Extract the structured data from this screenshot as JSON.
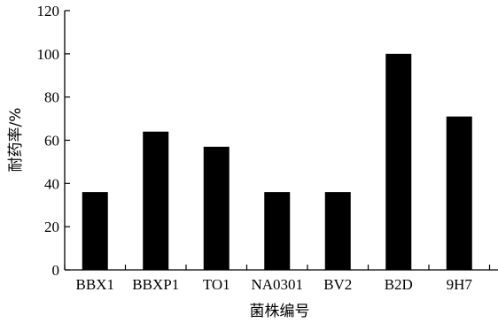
{
  "chart_data": {
    "type": "bar",
    "categories": [
      "BBX1",
      "BBXP1",
      "TO1",
      "NA0301",
      "BV2",
      "B2D",
      "9H7"
    ],
    "values": [
      36,
      64,
      57,
      36,
      36,
      100,
      71
    ],
    "xlabel": "菌株编号",
    "ylabel": "耐药率/%",
    "ylim": [
      0,
      120
    ],
    "yticks": [
      "0",
      "20",
      "40",
      "60",
      "80",
      "100",
      "120"
    ],
    "grid": false,
    "bar_color": "#000000"
  }
}
